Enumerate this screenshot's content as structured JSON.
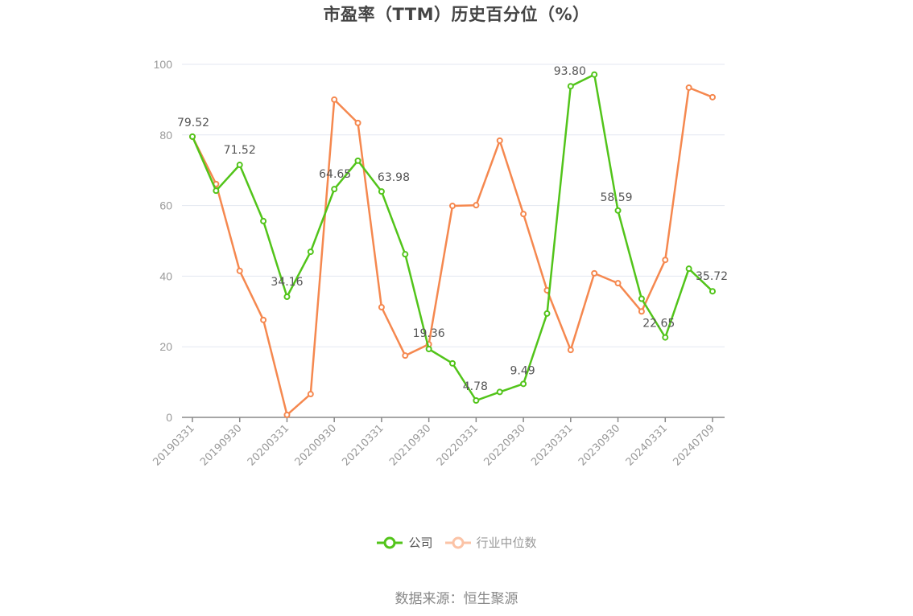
{
  "chart_data": {
    "type": "line",
    "title": "市盈率（TTM）历史百分位（%）",
    "xlabel": "",
    "ylabel": "",
    "ylim": [
      0,
      100
    ],
    "yticks": [
      0,
      20,
      40,
      60,
      80,
      100
    ],
    "grid": true,
    "legend_position": "bottom",
    "x": [
      "20190331",
      "20190630",
      "20190930",
      "20191231",
      "20200331",
      "20200630",
      "20200930",
      "20201231",
      "20210331",
      "20210630",
      "20210930",
      "20211231",
      "20220331",
      "20220630",
      "20220930",
      "20221231",
      "20230331",
      "20230630",
      "20230930",
      "20231231",
      "20240331",
      "20240630",
      "20240709"
    ],
    "xtick_labels": [
      "20190331",
      "20190930",
      "20200331",
      "20200930",
      "20210331",
      "20210930",
      "20220331",
      "20220930",
      "20230331",
      "20230930",
      "20240331",
      "20240709"
    ],
    "series": [
      {
        "name": "公司",
        "color": "#52c41a",
        "values": [
          79.52,
          64.2,
          71.52,
          55.6,
          34.16,
          46.9,
          64.65,
          72.7,
          63.98,
          46.2,
          19.36,
          15.3,
          4.78,
          7.2,
          9.49,
          29.4,
          93.8,
          97.1,
          58.59,
          33.6,
          22.65,
          42.1,
          35.72
        ],
        "labels": {
          "0": "79.52",
          "2": "71.52",
          "4": "34.16",
          "6": "64.65",
          "8": "63.98",
          "10": "19.36",
          "12": "4.78",
          "14": "9.49",
          "16": "93.80",
          "18": "58.59",
          "20": "22.65",
          "22": "35.72"
        }
      },
      {
        "name": "行业中位数",
        "color": "#f5884f",
        "values": [
          79.5,
          66.1,
          41.5,
          27.6,
          0.7,
          6.6,
          90.0,
          83.4,
          31.2,
          17.5,
          20.7,
          59.9,
          60.1,
          78.4,
          57.6,
          36.0,
          19.1,
          40.8,
          38.0,
          30.0,
          44.6,
          93.4,
          90.7
        ]
      }
    ]
  },
  "title": "市盈率（TTM）历史百分位（%）",
  "legend": {
    "company": "公司",
    "industry": "行业中位数"
  },
  "source": "数据来源：恒生聚源"
}
